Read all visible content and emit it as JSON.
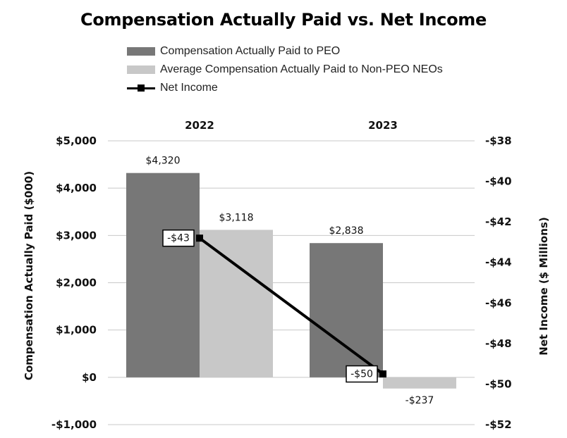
{
  "chart_data": {
    "type": "bar",
    "title": "Compensation Actually Paid vs. Net Income",
    "categories": [
      "2022",
      "2023"
    ],
    "series": [
      {
        "name": "Compensation Actually Paid to PEO",
        "type": "bar",
        "axis": "left",
        "color": "#777777",
        "values": [
          4320,
          2838
        ],
        "labels": [
          "$4,320",
          "$2,838"
        ]
      },
      {
        "name": "Average Compensation Actually Paid to Non-PEO NEOs",
        "type": "bar",
        "axis": "left",
        "color": "#c8c8c8",
        "values": [
          3118,
          -237
        ],
        "labels": [
          "$3,118",
          "-$237"
        ]
      },
      {
        "name": "Net Income",
        "type": "line",
        "axis": "right",
        "color": "#000000",
        "values": [
          -42.8,
          -49.5
        ],
        "labels": [
          "-$43",
          "-$50"
        ]
      }
    ],
    "ylabel": "Compensation Actually Paid ($000)",
    "y2label": "Net Income ($ Millions)",
    "ylim": [
      -1000,
      5000
    ],
    "y2lim": [
      -52,
      -38
    ],
    "yticks": [
      5000,
      4000,
      3000,
      2000,
      1000,
      0,
      -1000
    ],
    "yticklabels": [
      "$5,000",
      "$4,000",
      "$3,000",
      "$2,000",
      "$1,000",
      "$0",
      "-$1,000"
    ],
    "y2ticks": [
      -38,
      -40,
      -42,
      -44,
      -46,
      -48,
      -50,
      -52
    ],
    "y2ticklabels": [
      "-$38",
      "-$40",
      "-$42",
      "-$44",
      "-$46",
      "-$48",
      "-$50",
      "-$52"
    ],
    "grid": true,
    "legend": "top-left",
    "category_axis": "top"
  }
}
